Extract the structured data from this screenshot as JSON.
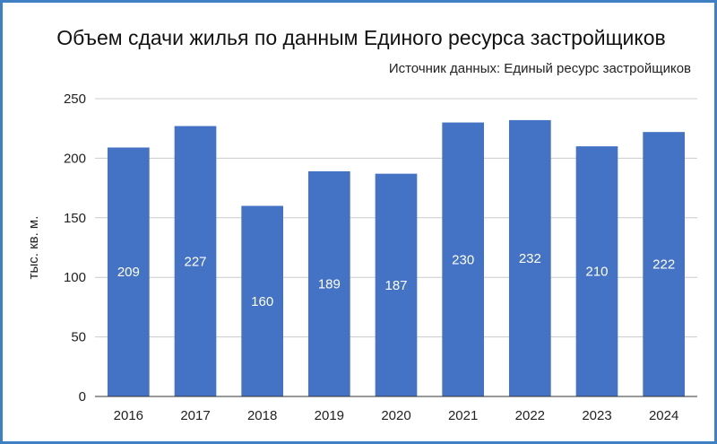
{
  "chart_data": {
    "type": "bar",
    "title": "Объем сдачи жилья по данным Единого ресурса застройщиков",
    "subtitle": "Источник данных: Единый ресурс застройщиков",
    "xlabel": "",
    "ylabel": "тыс. кв. м.",
    "categories": [
      "2016",
      "2017",
      "2018",
      "2019",
      "2020",
      "2021",
      "2022",
      "2023",
      "2024"
    ],
    "values": [
      209,
      227,
      160,
      189,
      187,
      230,
      232,
      210,
      222
    ],
    "ylim": [
      0,
      250
    ],
    "yticks": [
      0,
      50,
      100,
      150,
      200,
      250
    ],
    "grid": true,
    "legend": "none",
    "data_labels": true,
    "bar_color": "#4472c4"
  },
  "colors": {
    "frame": "#3f80c4",
    "grid": "#cccccc",
    "axis": "#333333"
  }
}
